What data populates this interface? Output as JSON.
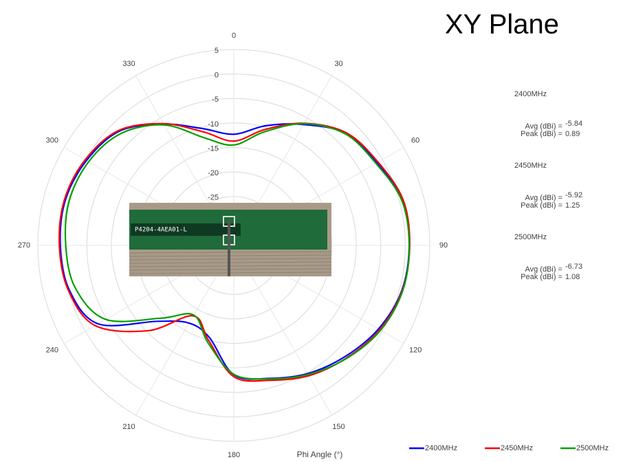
{
  "chart_data": {
    "type": "polar",
    "title": "XY Plane",
    "axis_label": "Phi Angle (°)",
    "inset_label": "P4204-4AEA01-L",
    "rlim": [
      -35,
      5
    ],
    "rticks": [
      -25,
      -20,
      -15,
      -10,
      -5,
      0,
      5
    ],
    "angle_ticks": [
      0,
      30,
      60,
      90,
      120,
      150,
      180,
      210,
      240,
      270,
      300,
      330
    ],
    "theta": [
      0,
      15,
      30,
      45,
      60,
      75,
      90,
      105,
      120,
      135,
      150,
      165,
      180,
      195,
      210,
      225,
      240,
      255,
      270,
      285,
      300,
      315,
      330,
      345
    ],
    "series": [
      {
        "name": "2400MHz",
        "color": "#0000ff",
        "values": [
          -12.3,
          -9.7,
          -6.5,
          -2.6,
          -1.3,
          0.7,
          0.8,
          0.5,
          -0.9,
          -2.9,
          -4.8,
          -6.9,
          -8.6,
          -15.6,
          -16.7,
          -13.1,
          -3,
          -0.2,
          0.4,
          0.6,
          -0.3,
          -2,
          -6.4,
          -10.3
        ]
      },
      {
        "name": "2450MHz",
        "color": "#ff0000",
        "values": [
          -13.7,
          -10.5,
          -6.2,
          -2.5,
          -1,
          0.8,
          0.9,
          0.6,
          -0.6,
          -2.5,
          -4.3,
          -6.5,
          -8.2,
          -15,
          -18.4,
          -10.4,
          -2.3,
          0,
          0.6,
          0.8,
          0,
          -1.8,
          -6.3,
          -11
        ]
      },
      {
        "name": "2500MHz",
        "color": "#00a000",
        "values": [
          -14.5,
          -11,
          -6.3,
          -2.8,
          -1.5,
          0.5,
          0.8,
          0.7,
          -0.4,
          -2.4,
          -4.6,
          -6.8,
          -8.7,
          -14.5,
          -18.6,
          -14,
          -4.8,
          -1.5,
          -0.7,
          -0.2,
          -0.8,
          -2.6,
          -6.6,
          -12.3
        ]
      }
    ],
    "annotations": [
      {
        "band": "2400MHz",
        "avg_label": "Avg (dBi) =",
        "avg": -5.84,
        "peak_label": "Peak (dBi) =",
        "peak": 0.89
      },
      {
        "band": "2450MHz",
        "avg_label": "Avg (dBi) =",
        "avg": -5.92,
        "peak_label": "Peak (dBi) =",
        "peak": 1.25
      },
      {
        "band": "2500MHz",
        "avg_label": "Avg (dBi) =",
        "avg": -6.73,
        "peak_label": "Peak (dBi) =",
        "peak": 1.08
      }
    ]
  }
}
